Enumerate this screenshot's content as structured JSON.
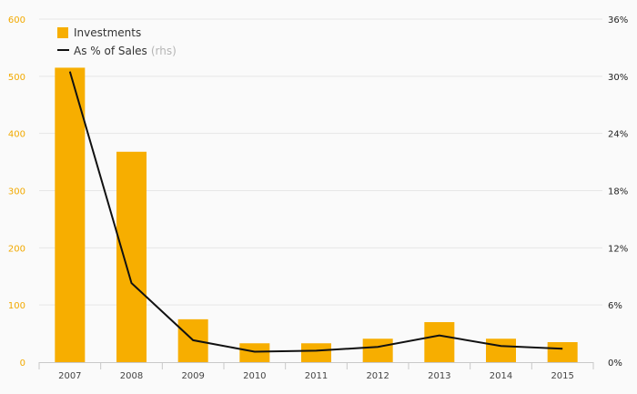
{
  "chart_data": {
    "type": "bar+line",
    "categories": [
      "2007",
      "2008",
      "2009",
      "2010",
      "2011",
      "2012",
      "2013",
      "2014",
      "2015"
    ],
    "series": [
      {
        "name": "Investments",
        "type": "bar",
        "axis": "left",
        "values": [
          515,
          368,
          75,
          33,
          33,
          41,
          70,
          41,
          35
        ]
      },
      {
        "name": "As % of Sales",
        "name_suffix": "(rhs)",
        "type": "line",
        "axis": "right",
        "values": [
          30.5,
          8.3,
          2.3,
          1.1,
          1.2,
          1.6,
          2.8,
          1.7,
          1.4
        ]
      }
    ],
    "left_axis": {
      "ylim": [
        0,
        600
      ],
      "ticks": [
        "0",
        "100",
        "200",
        "300",
        "400",
        "500",
        "600"
      ]
    },
    "right_axis": {
      "ylim": [
        0,
        36
      ],
      "ticks": [
        "0%",
        "6%",
        "12%",
        "18%",
        "24%",
        "30%",
        "36%"
      ]
    },
    "grid": true,
    "legend": "top-left",
    "colors": {
      "bar": "#f7ae00",
      "line": "#111111",
      "left_ticks": "#f2a900",
      "grid": "#e6e6e6"
    }
  }
}
